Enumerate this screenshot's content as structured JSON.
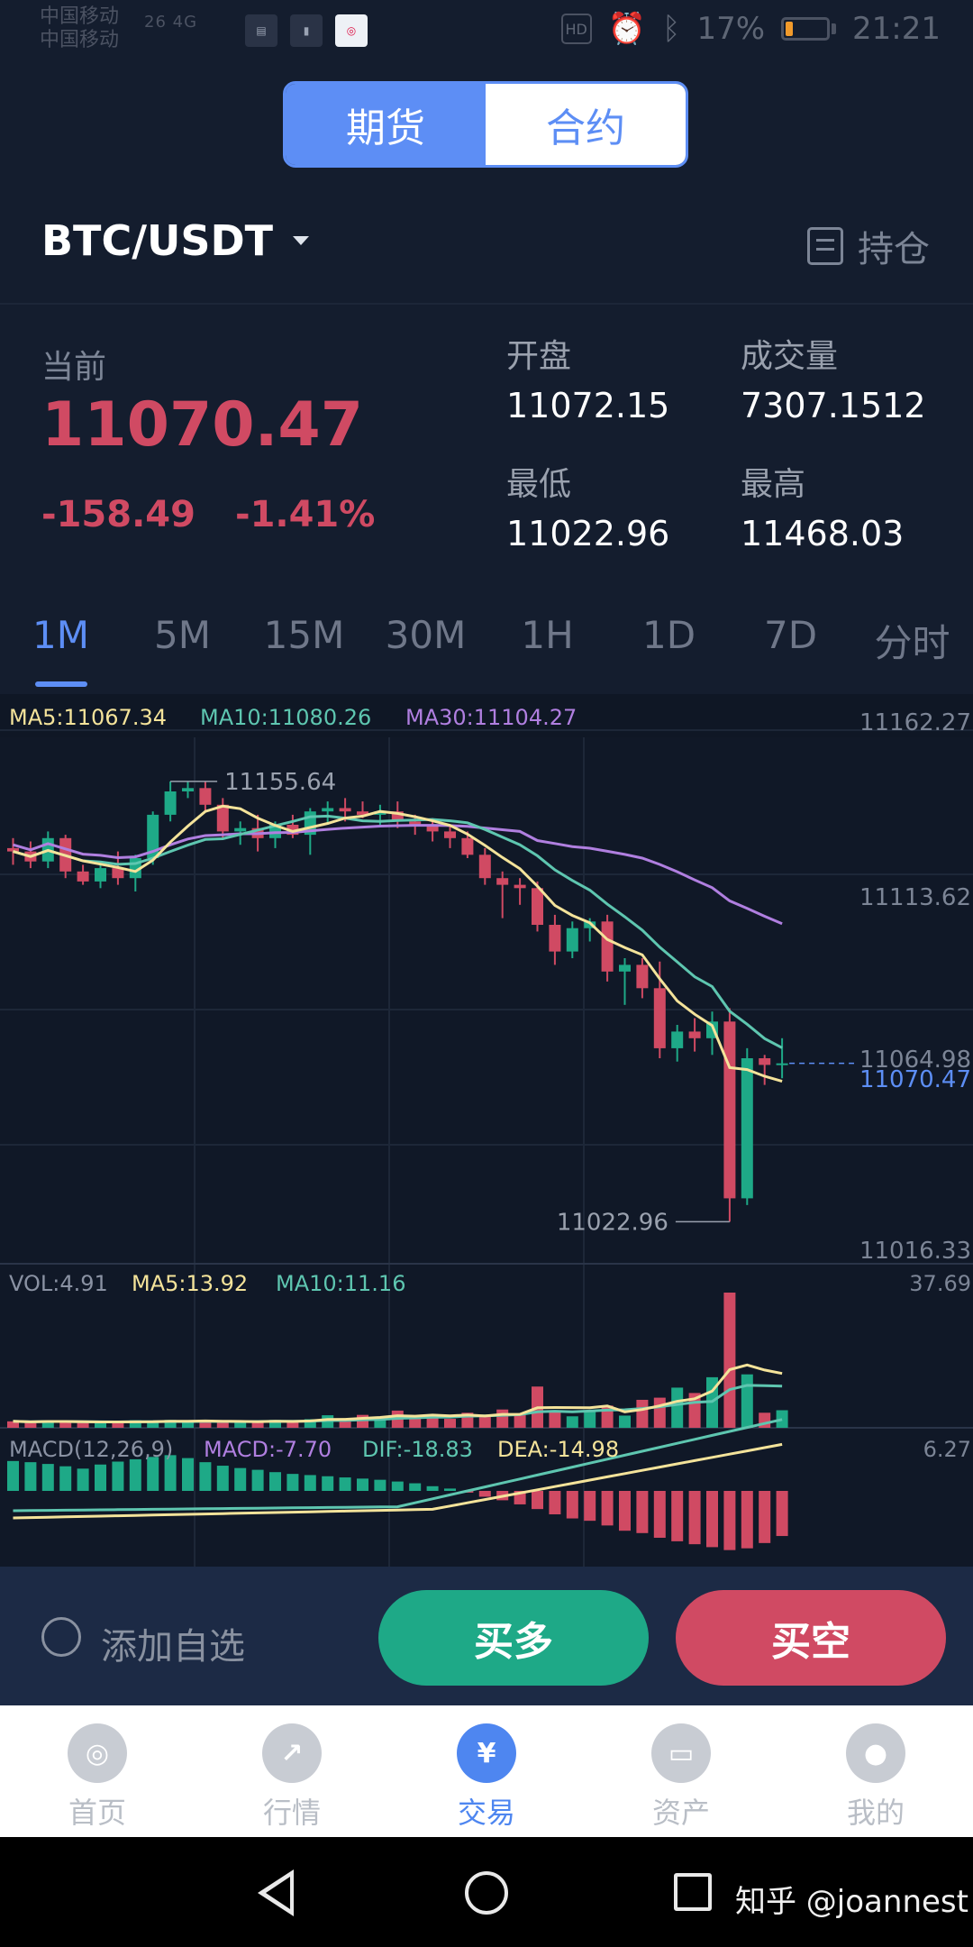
{
  "status": {
    "carrier1": "中国移动",
    "carrier2": "中国移动",
    "signal": "26 4G",
    "app_badge": "◎",
    "battery": "17%",
    "time": "21:21"
  },
  "segment": {
    "futures": "期货",
    "contract": "合约"
  },
  "pair": "BTC/USDT",
  "position_label": "持仓",
  "current": {
    "label": "当前",
    "price": "11070.47",
    "change": "-158.49",
    "change_pct": "-1.41%"
  },
  "stats": {
    "open_label": "开盘",
    "open": "11072.15",
    "volume_label": "成交量",
    "volume": "7307.1512",
    "low_label": "最低",
    "low": "11022.96",
    "high_label": "最高",
    "high": "11468.03"
  },
  "tabs": [
    "1M",
    "5M",
    "15M",
    "30M",
    "1H",
    "1D",
    "7D",
    "分时"
  ],
  "active_tab": 0,
  "chart_data": {
    "type": "candlestick",
    "ma_legend": {
      "ma5": "MA5:11067.34",
      "ma10": "MA10:11080.26",
      "ma30": "MA30:11104.27"
    },
    "y_ticks": [
      "11162.27",
      "11113.62",
      "11064.98",
      "11016.33"
    ],
    "last_price_label": "11070.47",
    "max_label": "11155.64",
    "min_label": "11022.96",
    "ylim": [
      11016.33,
      11162.27
    ],
    "ohlc": [
      [
        11135,
        11138,
        11130,
        11134
      ],
      [
        11134,
        11137,
        11129,
        11131
      ],
      [
        11131,
        11140,
        11129,
        11138
      ],
      [
        11138,
        11139,
        11126,
        11128
      ],
      [
        11128,
        11130,
        11124,
        11125
      ],
      [
        11125,
        11131,
        11123,
        11129
      ],
      [
        11129,
        11134,
        11124,
        11126
      ],
      [
        11126,
        11133,
        11122,
        11132
      ],
      [
        11132,
        11146,
        11130,
        11145
      ],
      [
        11145,
        11155,
        11143,
        11152
      ],
      [
        11152,
        11155,
        11150,
        11153
      ],
      [
        11153,
        11155,
        11146,
        11148
      ],
      [
        11148,
        11150,
        11138,
        11140
      ],
      [
        11140,
        11143,
        11136,
        11141
      ],
      [
        11141,
        11145,
        11134,
        11138
      ],
      [
        11138,
        11143,
        11135,
        11142
      ],
      [
        11142,
        11145,
        11138,
        11139
      ],
      [
        11139,
        11147,
        11133,
        11146
      ],
      [
        11146,
        11149,
        11142,
        11147
      ],
      [
        11147,
        11150,
        11143,
        11146
      ],
      [
        11146,
        11149,
        11144,
        11145
      ],
      [
        11145,
        11148,
        11142,
        11146
      ],
      [
        11146,
        11149,
        11141,
        11143
      ],
      [
        11143,
        11145,
        11139,
        11142
      ],
      [
        11142,
        11144,
        11137,
        11140
      ],
      [
        11140,
        11142,
        11135,
        11138
      ],
      [
        11138,
        11140,
        11132,
        11133
      ],
      [
        11133,
        11135,
        11124,
        11126
      ],
      [
        11126,
        11128,
        11114,
        11124
      ],
      [
        11124,
        11126,
        11118,
        11123
      ],
      [
        11123,
        11125,
        11110,
        11112
      ],
      [
        11112,
        11115,
        11100,
        11104
      ],
      [
        11104,
        11113,
        11102,
        11111
      ],
      [
        11111,
        11114,
        11107,
        11113
      ],
      [
        11113,
        11115,
        11095,
        11098
      ],
      [
        11098,
        11102,
        11088,
        11100
      ],
      [
        11100,
        11102,
        11090,
        11093
      ],
      [
        11093,
        11101,
        11072,
        11075
      ],
      [
        11075,
        11082,
        11071,
        11080
      ],
      [
        11080,
        11084,
        11074,
        11078
      ],
      [
        11078,
        11086,
        11073,
        11083
      ],
      [
        11083,
        11087,
        11023,
        11030
      ],
      [
        11030,
        11075,
        11028,
        11072
      ],
      [
        11072,
        11073,
        11064,
        11070
      ],
      [
        11070,
        11078,
        11066,
        11070.47
      ]
    ],
    "vol_legend": {
      "vol": "VOL:4.91",
      "ma5": "MA5:13.92",
      "ma10": "MA10:11.16"
    },
    "vol_max_label": "37.69",
    "volumes": [
      1.8,
      1.5,
      2,
      1.7,
      1.4,
      1.6,
      1.5,
      2.1,
      1.8,
      2.2,
      1.6,
      1.9,
      1.7,
      1.5,
      1.8,
      2.2,
      1.6,
      2.4,
      3.5,
      2.1,
      3.6,
      2.8,
      4.8,
      2.9,
      3.6,
      2.5,
      4.2,
      3.3,
      5.1,
      3.8,
      11.5,
      4.6,
      3.2,
      4.9,
      6.2,
      3.4,
      7.8,
      8.4,
      11.2,
      9.7,
      14.1,
      37.7,
      14.9,
      4.2,
      4.9
    ],
    "macd_legend": {
      "title": "MACD(12,26,9)",
      "macd": "MACD:-7.70",
      "dif": "DIF:-18.83",
      "dea": "DEA:-14.98"
    },
    "macd_max_label": "6.27",
    "macd_hist": [
      5.1,
      4.9,
      4.6,
      4.2,
      3.8,
      4.5,
      5,
      5.4,
      5.8,
      6.1,
      5.6,
      4.9,
      4.3,
      3.9,
      3.6,
      3.2,
      2.9,
      2.7,
      2.5,
      2.3,
      2.1,
      1.9,
      1.6,
      1.3,
      0.8,
      0.4,
      -0.3,
      -1,
      -1.6,
      -2.3,
      -3.1,
      -4,
      -4.7,
      -5.1,
      -5.9,
      -6.8,
      -7.2,
      -8,
      -8.6,
      -9.1,
      -9.6,
      -10.1,
      -9.8,
      -8.9,
      -7.7
    ]
  },
  "actions": {
    "watch": "添加自选",
    "buy": "买多",
    "sell": "买空"
  },
  "nav": [
    {
      "label": "首页",
      "icon": "◎"
    },
    {
      "label": "行情",
      "icon": "↗"
    },
    {
      "label": "交易",
      "icon": "¥"
    },
    {
      "label": "资产",
      "icon": "▭"
    },
    {
      "label": "我的",
      "icon": "●"
    }
  ],
  "nav_active": 2,
  "watermark": "知乎 @joannest",
  "colors": {
    "up": "#1ea987",
    "down": "#d04a63",
    "accent": "#5d8ef5",
    "ma5": "#f4e39a",
    "ma10": "#5ec6b0",
    "ma30": "#b07fe0"
  }
}
